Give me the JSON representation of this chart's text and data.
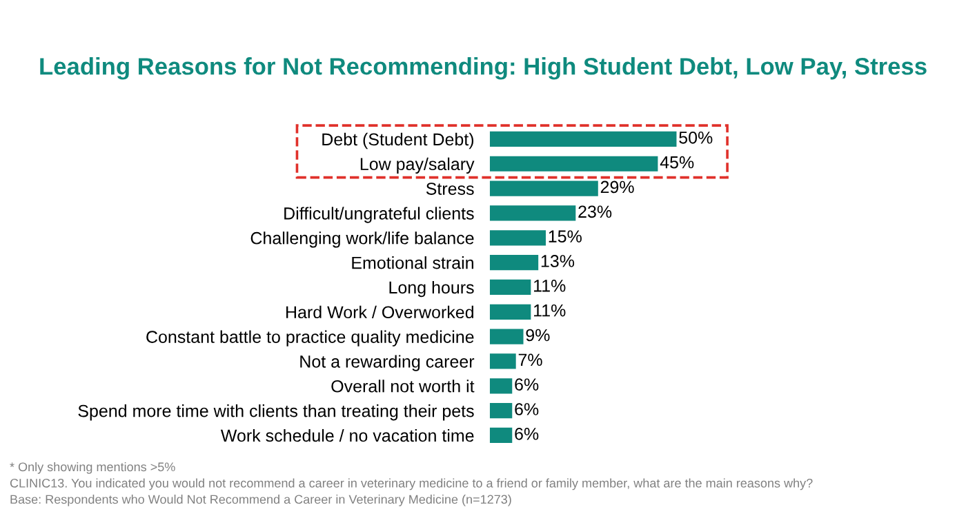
{
  "chart_data": {
    "type": "bar",
    "orientation": "horizontal",
    "title": "Leading Reasons for Not Recommending: High Student Debt, Low Pay, Stress",
    "categories": [
      "Debt (Student Debt)",
      "Low pay/salary",
      "Stress",
      "Difficult/ungrateful clients",
      "Challenging work/life balance",
      "Emotional strain",
      "Long hours",
      "Hard Work / Overworked",
      "Constant battle to practice quality medicine",
      "Not a rewarding career",
      "Overall not worth it",
      "Spend more time with clients than treating their pets",
      "Work schedule / no vacation time"
    ],
    "values": [
      50,
      45,
      29,
      23,
      15,
      13,
      11,
      11,
      9,
      7,
      6,
      6,
      6
    ],
    "value_labels": [
      "50%",
      "45%",
      "29%",
      "23%",
      "15%",
      "13%",
      "11%",
      "11%",
      "9%",
      "7%",
      "6%",
      "6%",
      "6%"
    ],
    "color": "#0f8a7e",
    "annotations": [
      "* Only showing mentions >5%",
      "CLINIC13. You indicated you would not recommend a career in veterinary medicine to a friend or family member, what are the main reasons why?",
      "Base: Respondents who Would Not Recommend a Career in Veterinary Medicine (n=1273)"
    ]
  }
}
